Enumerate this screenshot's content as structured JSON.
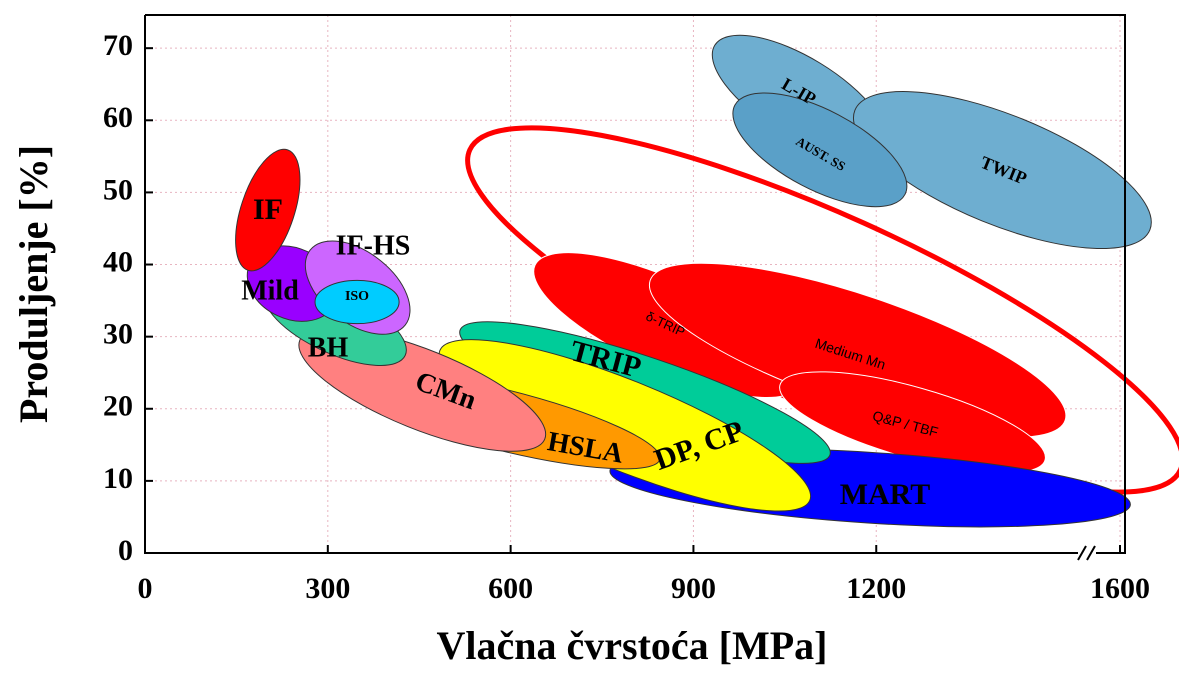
{
  "chart_data": {
    "type": "ellipse-regions",
    "x_label": "Vlačna čvrstoća [MPa]",
    "y_label": "Produljenje [%]",
    "xlim": [
      0,
      1600
    ],
    "ylim": [
      0,
      74.6
    ],
    "xticks": [
      0,
      300,
      600,
      900,
      1200,
      1600
    ],
    "yticks": [
      0,
      10,
      20,
      30,
      40,
      50,
      60,
      70
    ],
    "grid": true,
    "grid_color": "#e8b4c0",
    "regions": [
      {
        "x": [
          533,
          1699
        ],
        "y": [
          55.9,
          11.5
        ],
        "width": 13.2,
        "color": "#ff0000",
        "outline": true
      },
      {
        "name": "δ-TRIP",
        "x": [
          640,
          1075
        ],
        "y": [
          39.9,
          23.3
        ],
        "width": 6.2,
        "color": "#ff0000"
      },
      {
        "name": "Medium Mn",
        "x": [
          829,
          1510
        ],
        "y": [
          37.8,
          18.4
        ],
        "width": 7.6,
        "color": "#ff0000"
      },
      {
        "name": "Q&P / TBF",
        "x": [
          1042,
          1477
        ],
        "y": [
          23.3,
          12.9
        ],
        "width": 4.9,
        "color": "#ff0000"
      },
      {
        "name": "L-IP",
        "x": [
          935,
          1214
        ],
        "y": [
          70.4,
          56.0
        ],
        "width": 5.5,
        "color": "#6eaed0"
      },
      {
        "name": "TWIP",
        "x": [
          1165,
          1649
        ],
        "y": [
          61.4,
          44.8
        ],
        "width": 7.6,
        "color": "#6eaed0"
      },
      {
        "name": "AUST. SS",
        "x": [
          968,
          1247
        ],
        "y": [
          62.1,
          49.7
        ],
        "width": 5.5,
        "color": "#5aa0c8"
      },
      {
        "name": "MART",
        "x": [
          763,
          1617
        ],
        "y": [
          11.4,
          6.7
        ],
        "width": 4.9,
        "color": "#0000ff"
      },
      {
        "name": "TRIP",
        "x": [
          517,
          1124
        ],
        "y": [
          30.9,
          13.6
        ],
        "width": 4.9,
        "color": "#00cc99"
      },
      {
        "name": "DP, CP",
        "x": [
          484,
          1091
        ],
        "y": [
          28.1,
          7.3
        ],
        "width": 6.2,
        "color": "#ffff00"
      },
      {
        "name": "HSLA",
        "x": [
          320,
          845
        ],
        "y": [
          24.1,
          13.0
        ],
        "width": 4.2,
        "color": "#ff9900"
      },
      {
        "name": "CMn",
        "x": [
          254,
          656
        ],
        "y": [
          29.5,
          15.8
        ],
        "width": 5.5,
        "color": "#ff8080"
      },
      {
        "name": "BH",
        "x": [
          197,
          427
        ],
        "y": [
          36.4,
          27.4
        ],
        "width": 4.2,
        "color": "#33cc99"
      },
      {
        "name": "Mild",
        "x": [
          172,
          312
        ],
        "y": [
          40.1,
          34.6
        ],
        "width": 4.9,
        "color": "#9900ff"
      },
      {
        "name": "IF-HS",
        "x": [
          271,
          427
        ],
        "y": [
          42.0,
          31.6
        ],
        "width": 4.9,
        "color": "#cc66ff"
      },
      {
        "name": "ISO",
        "x": [
          279,
          417
        ],
        "y": [
          34.8,
          34.8
        ],
        "width": 3.0,
        "color": "#00ccff"
      },
      {
        "name": "IF",
        "x": [
          234,
          169
        ],
        "y": [
          55.9,
          39.2
        ],
        "width": 3.7,
        "color": "#ff0000"
      }
    ]
  }
}
